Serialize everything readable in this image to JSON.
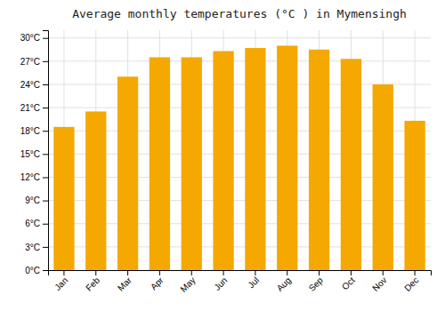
{
  "chart_data": {
    "type": "bar",
    "title": "Average monthly temperatures (°C ) in Mymensingh",
    "categories": [
      "Jan",
      "Feb",
      "Mar",
      "Apr",
      "May",
      "Jun",
      "Jul",
      "Aug",
      "Sep",
      "Oct",
      "Nov",
      "Dec"
    ],
    "values": [
      18.5,
      20.5,
      25.0,
      27.5,
      27.5,
      28.3,
      28.7,
      29.0,
      28.5,
      27.3,
      24.0,
      19.3
    ],
    "color": "#F5A800",
    "ylim": [
      0,
      31
    ],
    "yticks": [
      {
        "value": 0,
        "label": "0°C"
      },
      {
        "value": 3,
        "label": "3°C"
      },
      {
        "value": 6,
        "label": "6°C"
      },
      {
        "value": 9,
        "label": "9°C"
      },
      {
        "value": 12,
        "label": "12°C"
      },
      {
        "value": 15,
        "label": "15°C"
      },
      {
        "value": 18,
        "label": "18°C"
      },
      {
        "value": 21,
        "label": "21°C"
      },
      {
        "value": 24,
        "label": "24°C"
      },
      {
        "value": 27,
        "label": "27°C"
      },
      {
        "value": 30,
        "label": "30°C"
      }
    ],
    "grid": true
  }
}
